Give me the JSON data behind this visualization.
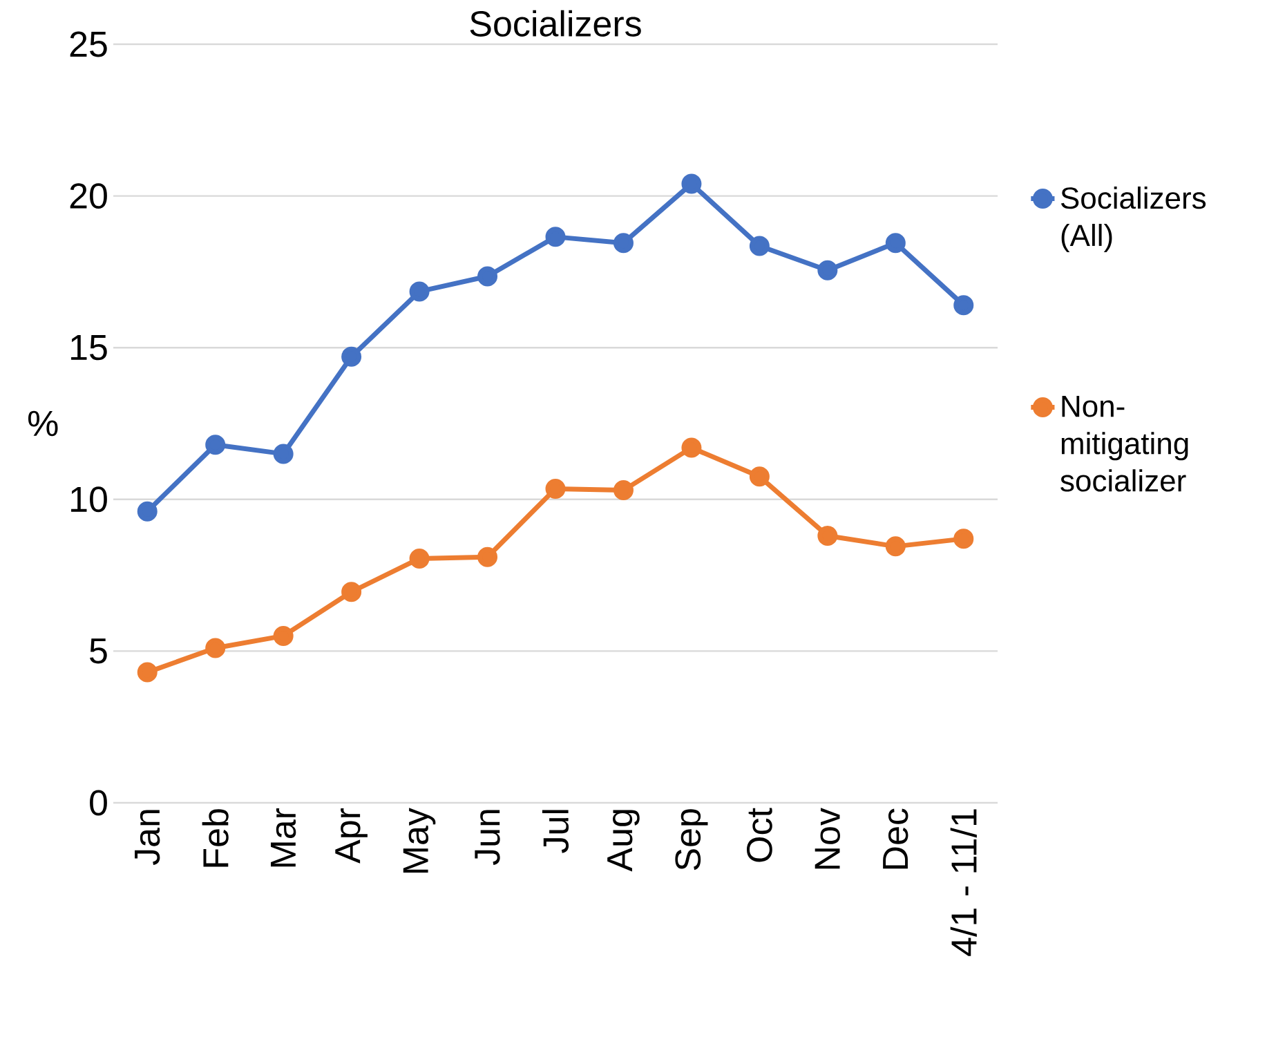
{
  "chart_data": {
    "type": "line",
    "title": "Socializers",
    "ylabel": "%",
    "categories": [
      "Jan",
      "Feb",
      "Mar",
      "Apr",
      "May",
      "Jun",
      "Jul",
      "Aug",
      "Sep",
      "Oct",
      "Nov",
      "Dec",
      "4/1 - 11/1"
    ],
    "series": [
      {
        "name": "Socializers (All)",
        "color": "#4472c4",
        "values": [
          9.6,
          11.8,
          11.5,
          14.7,
          16.85,
          17.35,
          18.65,
          18.45,
          20.4,
          18.35,
          17.55,
          18.45,
          16.4
        ]
      },
      {
        "name": "Non-mitigating socializer",
        "color": "#ed7d31",
        "values": [
          4.3,
          5.1,
          5.5,
          6.95,
          8.05,
          8.1,
          10.35,
          10.3,
          11.7,
          10.75,
          8.8,
          8.45,
          8.7
        ]
      }
    ],
    "ylim": [
      0,
      25
    ],
    "yticks": [
      0,
      5,
      10,
      15,
      20,
      25
    ],
    "grid": "y",
    "legend": "right",
    "marker": "circle",
    "line_style": "solid"
  }
}
